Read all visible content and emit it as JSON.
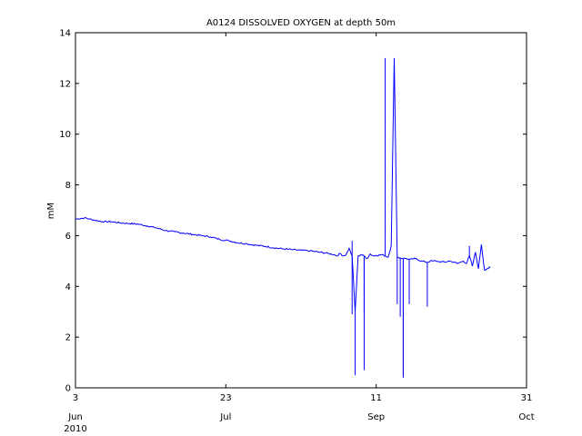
{
  "chart_data": {
    "type": "line",
    "title": "A0124 DISSOLVED OXYGEN at depth 50m",
    "ylabel": "mM",
    "xlabel": "",
    "year_label": "2010",
    "ylim": [
      0,
      14
    ],
    "xlim": [
      "2010-06-03",
      "2010-10-31"
    ],
    "y_ticks": [
      0,
      2,
      4,
      6,
      8,
      10,
      12,
      14
    ],
    "x_ticks": [
      {
        "date": "2010-06-03",
        "day": "3",
        "month": "Jun"
      },
      {
        "date": "2010-07-23",
        "day": "23",
        "month": "Jul"
      },
      {
        "date": "2010-09-11",
        "day": "11",
        "month": "Sep"
      },
      {
        "date": "2010-10-31",
        "day": "31",
        "month": "Oct"
      }
    ],
    "grid": false,
    "series": [
      {
        "color": "#0000ff",
        "x": [
          "2010-06-03",
          "2010-06-06",
          "2010-06-09",
          "2010-06-12",
          "2010-06-15",
          "2010-06-18",
          "2010-06-21",
          "2010-06-24",
          "2010-06-27",
          "2010-06-30",
          "2010-07-03",
          "2010-07-06",
          "2010-07-09",
          "2010-07-12",
          "2010-07-15",
          "2010-07-18",
          "2010-07-21",
          "2010-07-24",
          "2010-07-27",
          "2010-07-30",
          "2010-08-02",
          "2010-08-05",
          "2010-08-08",
          "2010-08-11",
          "2010-08-14",
          "2010-08-17",
          "2010-08-20",
          "2010-08-23",
          "2010-08-26",
          "2010-08-28",
          "2010-08-29",
          "2010-08-30",
          "2010-08-31",
          "2010-09-01",
          "2010-09-02",
          "2010-09-03",
          "2010-09-04",
          "2010-09-05",
          "2010-09-06",
          "2010-09-07",
          "2010-09-08",
          "2010-09-09",
          "2010-09-10",
          "2010-09-11",
          "2010-09-13",
          "2010-09-14",
          "2010-09-15",
          "2010-09-16",
          "2010-09-17",
          "2010-09-18",
          "2010-09-19",
          "2010-09-20",
          "2010-09-21",
          "2010-09-22",
          "2010-09-23",
          "2010-09-24",
          "2010-09-26",
          "2010-09-28",
          "2010-09-29",
          "2010-09-30",
          "2010-10-01",
          "2010-10-02",
          "2010-10-03",
          "2010-10-04",
          "2010-10-05",
          "2010-10-06",
          "2010-10-07",
          "2010-10-08",
          "2010-10-09",
          "2010-10-10",
          "2010-10-11",
          "2010-10-12",
          "2010-10-13",
          "2010-10-14",
          "2010-10-15",
          "2010-10-16",
          "2010-10-17",
          "2010-10-18",
          "2010-10-19"
        ],
        "y": [
          6.65,
          6.7,
          6.62,
          6.55,
          6.55,
          6.5,
          6.48,
          6.45,
          6.38,
          6.3,
          6.2,
          6.15,
          6.1,
          6.05,
          6.0,
          5.95,
          5.85,
          5.8,
          5.72,
          5.68,
          5.62,
          5.58,
          5.52,
          5.48,
          5.45,
          5.42,
          5.4,
          5.35,
          5.3,
          5.25,
          5.2,
          5.3,
          5.2,
          5.25,
          5.5,
          5.2,
          3.0,
          5.2,
          5.25,
          5.2,
          5.1,
          5.28,
          5.2,
          5.22,
          5.25,
          5.2,
          5.15,
          5.6,
          13.0,
          5.15,
          5.12,
          5.1,
          5.1,
          5.05,
          5.08,
          5.1,
          5.0,
          4.95,
          5.0,
          5.0,
          5.0,
          4.97,
          4.97,
          4.95,
          5.0,
          4.98,
          4.95,
          4.9,
          4.95,
          5.0,
          4.9,
          5.2,
          4.8,
          5.35,
          4.7,
          5.65,
          4.65,
          4.7,
          4.75
        ]
      }
    ],
    "spikes": [
      {
        "date": "2010-09-03",
        "value": 5.8
      },
      {
        "date": "2010-09-03",
        "value": 2.9
      },
      {
        "date": "2010-09-04",
        "value": 0.5
      },
      {
        "date": "2010-09-07",
        "value": 0.7
      },
      {
        "date": "2010-09-07",
        "value": 3.0
      },
      {
        "date": "2010-09-14",
        "value": 13.0
      },
      {
        "date": "2010-09-18",
        "value": 3.3
      },
      {
        "date": "2010-09-19",
        "value": 2.8
      },
      {
        "date": "2010-09-20",
        "value": 0.4
      },
      {
        "date": "2010-09-20",
        "value": 0.5
      },
      {
        "date": "2010-09-22",
        "value": 3.3
      },
      {
        "date": "2010-09-28",
        "value": 3.2
      },
      {
        "date": "2010-10-12",
        "value": 5.6
      }
    ]
  }
}
